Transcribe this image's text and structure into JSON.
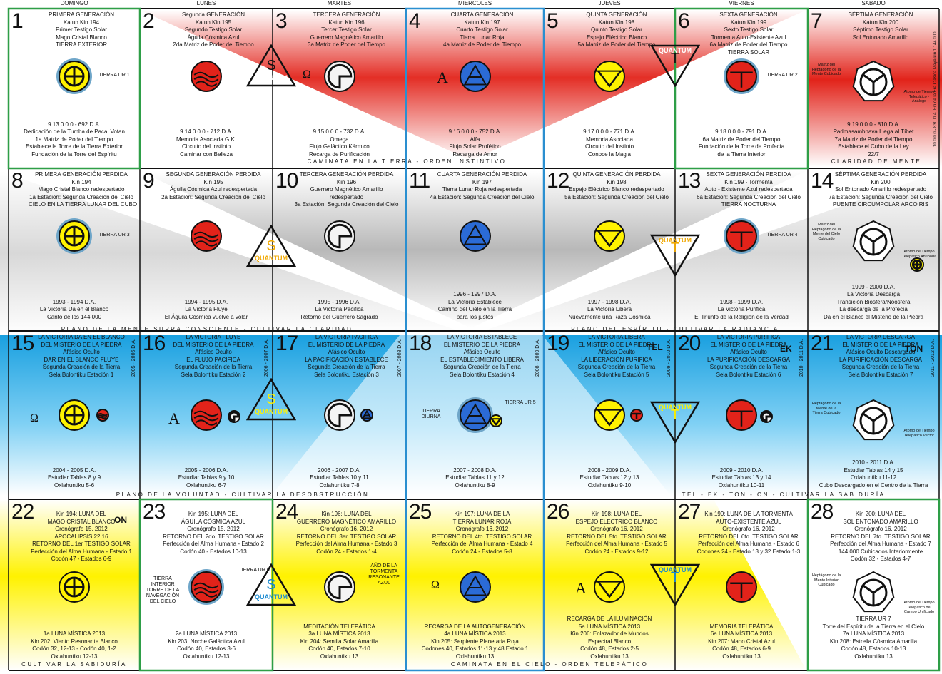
{
  "days": [
    "DOMINGO",
    "LUNES",
    "MARTES",
    "MIERCOLES",
    "JUEVES",
    "VIERNES",
    "SABADO"
  ],
  "strips": [
    "CAMINATA EN LA TIERRA - ORDEN INSTINTIVO",
    "CLARIDAD DE MENTE",
    "PLANO DE LA MENTE SUPRA CONSCIENTE - CULTIVAR LA CLARIDAD",
    "PLANO DEL ESPÍRITU - CULTIVAR LA RADIANCIA",
    "PLANO DE LA VOLUNTAD - CULTIVAR LA DESOBSTRUCCIÓN",
    "TEL - EK - TON - ON - CULTIVAR LA SABIDURÍA",
    "CULTIVAR LA SABIDURÍA",
    "CAMINATA EN EL CIELO - ORDEN TELEPÁTICO"
  ],
  "quantum": {
    "label": "QUANTUM",
    "s": "S",
    "t": "T"
  },
  "marks": {
    "tel": "TEL",
    "ek": "EK",
    "ton": "TON",
    "on": "ON",
    "omega": "Ω",
    "alfa": "A"
  },
  "side_vertical": "10.0.0.0 - 830 D.A. Fin de la Era Clásica Maya kin 1 144.000",
  "cells": [
    {
      "n": "1",
      "top": [
        "PRIMERA GENERACIÓN",
        "Katun Kin 194",
        "Primer Testigo Solar",
        "Mago Cristal Blanco",
        "TIERRA EXTERIOR"
      ],
      "side": "TIERRA UR 1",
      "bottom": [
        "9.13.0.0.0 - 692 D.A.",
        "Dedicación de la Tumba de Pacal Votan",
        "1a Matriz de Poder del Tiempo",
        "Establece la Torre de la Tierra Exterior",
        "Fundación de la Torre del Espíritu"
      ]
    },
    {
      "n": "2",
      "top": [
        "Segunda GENERACIÓN",
        "Katun Kin 195",
        "Segundo Testigo Solar",
        "Águila Cósmica Azul",
        "2da Matriz de Poder del Tiempo"
      ],
      "bottom": [
        "9.14.0.0.0 - 712 D.A.",
        "Memoria  Asociada G.K.",
        "Circuito del Instinto",
        "Caminar con Belleza"
      ]
    },
    {
      "n": "3",
      "top": [
        "TERCERA GENERACIÓN",
        "Katun Kin 196",
        "Tercer Testigo Solar",
        "Guerrero Magnético Amarillo",
        "3a Matriz de Poder del Tiempo"
      ],
      "bottom": [
        "9.15.0.0.0 - 732 D.A.",
        "Omega",
        "Flujo Galáctico Kármico",
        "Recarga de Purificación"
      ]
    },
    {
      "n": "4",
      "top": [
        "CUARTA GENERACIÓN",
        "Katun Kin 197",
        "Cuarto Testigo Solar",
        "Tierra Lunar Roja",
        "4a Matriz de Poder del Tiempo"
      ],
      "bottom": [
        "9.16.0.0.0 - 752 D.A.",
        "Alfa",
        "Flujo Solar Profético",
        "Recarga de Amor"
      ]
    },
    {
      "n": "5",
      "top": [
        "QUINTA GENERACIÓN",
        "Katun Kin 198",
        "Quinto Testigo Solar",
        "Espejo Eléctrico Blanco",
        "5a Matriz de Poder del Tiempo"
      ],
      "bottom": [
        "9.17.0.0.0 - 771 D.A.",
        "Memoria Asociada",
        "Circuito del Instinto",
        "Conoce la Magia"
      ]
    },
    {
      "n": "6",
      "top": [
        "SEXTA GENERACIÓN",
        "Katun Kin 199",
        "Sexto Testigo Solar",
        "Tormenta Auto-Existente Azul",
        "6a Matriz de Poder del Tiempo",
        "TIERRA SOLAR"
      ],
      "side": "TIERRA UR 2",
      "bottom": [
        "9.18.0.0.0 - 791 D.A.",
        "6a Matriz de Poder del Tiempo",
        "Fundación de la Torre de Profecía",
        "de la Tierra Interior"
      ]
    },
    {
      "n": "7",
      "top": [
        "SÉPTIMA GENERACIÓN",
        "Katun Kin 200",
        "Séptimo Testigo Solar",
        "Sol  Entonado Amarillo"
      ],
      "side": "Matriz del Heptágono de la Mente Cubicado",
      "side2": "Atomo de Tiempo Telepático - Análogo",
      "bottom": [
        "9.19.0.0.0 - 810 D.A.",
        "Padmasambhava Llega al Tíbet",
        "7a Matriz de Poder del Tiempo",
        "Establece el Cubo de la Ley",
        "22/7"
      ]
    },
    {
      "n": "8",
      "top": [
        "PRIMERA GENERACIÓN PERDIDA",
        "Kin 194",
        "Mago Cristal Blanco redespertado",
        "1a Estación: Segunda Creación del Cielo",
        "CIELO EN LA TIERRA LUNAR DEL CUBO"
      ],
      "side": "TIERRA UR 3",
      "bottom": [
        "1993 - 1994 D.A.",
        "La Victoria Da en el Blanco",
        "Canto de los 144,000"
      ]
    },
    {
      "n": "9",
      "top": [
        "SEGUNDA GENERACIÓN PERDIDA",
        "Kin 195",
        "Águila Cósmica Azul redespertada",
        "2a Estación: Segunda Creación del Cielo"
      ],
      "bottom": [
        "1994 - 1995 D.A.",
        "La Victoria Fluye",
        "El Águila Cósmica vuelve a volar"
      ]
    },
    {
      "n": "10",
      "top": [
        "TERCERA GENERACIÓN PERDIDA",
        "Kin 196",
        "Guerrero Magnético Amarillo",
        "redespertado",
        "3a Estación: Segunda Creación del Cielo"
      ],
      "bottom": [
        "1995 - 1996 D.A.",
        "La Victoria Pacifica",
        "Retorno del Guerrero Sagrado"
      ]
    },
    {
      "n": "11",
      "top": [
        "CUARTA GENERACIÓN PERDIDA",
        "Kin 197",
        "Tierra Lunar Roja redespertada",
        "4a Estación: Segunda Creación del Cielo"
      ],
      "bottom": [
        "1996 - 1997 D.A.",
        "La Victoria Establece",
        "Camino del Cielo en la Tierra",
        "para los justos"
      ]
    },
    {
      "n": "12",
      "top": [
        "QUINTA GENERACIÓN PERDIDA",
        "Kin 198",
        "Espejo Eléctrico Blanco redespertado",
        "5a Estación: Segunda Creación del Cielo"
      ],
      "bottom": [
        "1997 - 1998 D.A.",
        "La Victoria Libera",
        "Nuevamente una Raza Cósmica"
      ]
    },
    {
      "n": "13",
      "top": [
        "SEXTA GENERACIÓN PERDIDA",
        "Kin 199 - Tormenta",
        "Auto - Existente Azul redespertada",
        "6a Estación: Segunda Creación del Cielo",
        "TIERRA NOCTURNA"
      ],
      "side": "TIERRA UR 4",
      "bottom": [
        "1998 - 1999 D.A.",
        "La Victoria Purifica",
        "El Triunfo de la Religión de la Verdad"
      ]
    },
    {
      "n": "14",
      "top": [
        "SÉPTIMA GENERACIÓN PERDIDA",
        "Kin 200",
        "Sol Entonado Amarillo redespertado",
        "7a Estación: Segunda Creación del Cielo",
        "PUENTE CIRCUMPOLAR ARCOIRIS"
      ],
      "side": "Matriz del Heptágono de la Mente del Cielo Cubicado",
      "side2": "Atomo de Tiempo Telepático Antípoda",
      "bottom": [
        "1999 - 2000 D.A.",
        "La Victoria Descarga",
        "Transición Biósfera/Noosfera",
        "La descarga de la Profecía",
        "Da en el Blanco el Misterio de la Piedra"
      ]
    },
    {
      "n": "15",
      "top": [
        "LA VICTORIA DA EN EL BLANCO",
        "DEL MISTERIO DE LA PIEDRA",
        "Afásico Oculto",
        "DAR EN EL BLANCO FLUYE",
        "Segunda Creación de la Tierra",
        "Sela Bolontiku Estación 1"
      ],
      "vdate": "2005 - 2006 D.A.",
      "bottom": [
        "2004 - 2005 D.A.",
        "Estudiar Tablas 8 y 9",
        "Oxlahuntiku 5-6"
      ]
    },
    {
      "n": "16",
      "top": [
        "LA VICTORIA FLUYE",
        "DEL MISTERIO DE LA PIEDRA",
        "Afásico Oculto",
        "EL FLUJO PACIFICA",
        "Segunda Creación de la Tierra",
        "Sela Bolontiku Estación 2"
      ],
      "vdate": "2006 - 2007 D.A.",
      "bottom": [
        "2005 - 2006 D.A.",
        "Estudiar Tablas 9 y 10",
        "Oxlahuntiku 6-7"
      ]
    },
    {
      "n": "17",
      "top": [
        "LA VICTORIA PACIFICA",
        "EL MISTERIO DE LA PIEDRA",
        "Afásico Oculto",
        "LA PACIFICACIÓN ESTABLECE",
        "Segunda Creación de la Tierra",
        "Sela Bolontiku Estación 3"
      ],
      "vdate": "2007 - 2008 D.A.",
      "bottom": [
        "2006 - 2007 D.A.",
        "Estudiar Tablas 10 y 11",
        "Oxlahuntiku 7-8"
      ]
    },
    {
      "n": "18",
      "top": [
        "LA VICTORIA ESTABLECE",
        "EL MISTERIO DE LA PIEDRA",
        "Afásico Oculto",
        "EL ESTABLECIMIENTO LIBERA",
        "Segunda Creación de la Tierra",
        "Sela Bolontiku Estación 4"
      ],
      "vdate": "2008 - 2009 D.A.",
      "side": "TIERRA DIURNA",
      "side2": "TIERRA UR 5",
      "bottom": [
        "2007 - 2008 D.A.",
        "Estudiar Tablas 11 y 12",
        "Oxlahuntiku 8-9"
      ]
    },
    {
      "n": "19",
      "top": [
        "LA VICTORIA LIBERA",
        "EL MISTERIO DE LA PIEDRA",
        "Afásico Oculto",
        "LA LIBERACIÓN PURIFICA",
        "Segunda Creación de la Tierra",
        "Sela Bolontiku Estación 5"
      ],
      "vdate": "2009 - 2010 D.A.",
      "bottom": [
        "2008 - 2009 D.A.",
        "Estudiar Tablas 12 y 13",
        "Oxlahuntiku 9-10"
      ]
    },
    {
      "n": "20",
      "top": [
        "LA VICTORIA PURIFICA",
        "EL MISTERIO DE LA PIEDRA",
        "Afásico Oculto",
        "LA PURIFICACIÓN DESCARGA",
        "Segunda Creación de la Tierra",
        "Sela Bolontiku Estación 6"
      ],
      "vdate": "2010 - 2011 D.A.",
      "bottom": [
        "2009 - 2010 D.A.",
        "Estudiar Tablas 13 y 14",
        "Oxlahuntiku 10-11"
      ]
    },
    {
      "n": "21",
      "top": [
        "LA VICTORIA DESCARGA",
        "EL MISTERIO DE LA PIEDRA",
        "Afásico Oculto Descargado",
        "LA PURIFICACIÓN DESCARGA",
        "Segunda Creación de la Tierra",
        "Sela Bolontiku Estación 7"
      ],
      "vdate": "2011 - 2012 D.A.",
      "side": "Heptágono de la Mente de la Tierra Cubicado",
      "side2": "Atomo de Tiempo Telepático Vector",
      "bottom": [
        "2010 - 2011 D.A.",
        "Estudiar Tablas 14 y 15",
        "Oxlahuntiku 11-12",
        "Cubo Descargado en el Centro de la Tierra"
      ]
    },
    {
      "n": "22",
      "top": [
        "Kin 194: LUNA DEL",
        "MAGO CRISTAL BLANCO",
        "Cronógrafo 15, 2012",
        "APOCALIPSIS 22:16",
        "RETORNO DEL 1er TESTIGO SOLAR",
        "Perfección del Alma Humana - Estado 1",
        "Codón 47 - Estados 6-9"
      ],
      "bottom": [
        "1a LUNA MÍSTICA 2013",
        "Kin 202: Viento Resonante Blanco",
        "Codón 32, 12-13 - Codón 40, 1-2",
        "Oxlahuntiku 12-13"
      ]
    },
    {
      "n": "23",
      "top": [
        "Kin 195: LUNA DEL",
        "ÁGUILA CÓSMICA AZUL",
        "Cronógrafo 15, 2012",
        "RETORNO DEL 2do. TESTIGO SOLAR",
        "Perfección del Alma Humana - Estado 2",
        "Codón 40 - Estados 10-13"
      ],
      "side": "TIERRA INTERIOR TORRE DE LA NAVEGACIÓN DEL CIELO",
      "side2": "TIERRA UR 6",
      "bottom": [
        "2a LUNA MÍSTICA 2013",
        "Kin 203: Noche Galáctica Azul",
        "Codón 40, Estados 3-6",
        "Oxlahuntiku 12-13"
      ]
    },
    {
      "n": "24",
      "top": [
        "Kin 196: LUNA DEL",
        "GUERRERO MAGNÉTICO AMARILLO",
        "Cronógrafo 16, 2012",
        "RETORNO DEL 3er. TESTIGO SOLAR",
        "Perfección del Alma Humana - Estado 3",
        "Codón 24 - Estados 1-4"
      ],
      "side": "AÑO DE LA TORMENTA RESONANTE AZUL",
      "bottom": [
        "MEDITACIÓN TELEPÁTICA",
        "3a LUNA MÍSTICA 2013",
        "Kin 204: Semilla Solar Amarilla",
        "Codón 40, Estados 7-10",
        "Oxlahuntiku 13"
      ]
    },
    {
      "n": "25",
      "top": [
        "Kin 197: LUNA DE LA",
        "TIERRA LUNAR ROJA",
        "Cronógrafo 16, 2012",
        "RETORNO DEL 4to. TESTIGO SOLAR",
        "Perfección del Alma Humana - Estado 4",
        "Codón 24 - Estados 5-8"
      ],
      "bottom": [
        "RECARGA DE LA AUTOGENERACIÓN",
        "4a LUNA MÍSTICA 2013",
        "Kin 205: Serpiente Planetaria Roja",
        "Codones 40,  Estados 11-13 y 48 Estado 1",
        "Oxlahuntiku 13"
      ]
    },
    {
      "n": "26",
      "top": [
        "Kin 198: LUNA DEL",
        "ESPEJO ELÉCTRICO BLANCO",
        "Cronógrafo 16, 2012",
        "RETORNO DEL 5to. TESTIGO SOLAR",
        "Perfección del Alma Humana - Estado 5",
        "Codón 24 - Estados 9-12"
      ],
      "bottom": [
        "RECARGA DE LA ILUMINACIÓN",
        "5a LUNA MÍSTICA 2013",
        "Kin 206: Enlazador de Mundos",
        "Espectral Blanco",
        "Codón 48, Estados 2-5",
        "Oxlahuntiku 13"
      ]
    },
    {
      "n": "27",
      "top": [
        "Kin 199: LUNA DE LA TORMENTA",
        "AUTO-EXISTENTE AZUL",
        "Cronógrafo 16, 2012",
        "RETORNO DEL 6to. TESTIGO SOLAR",
        "Perfección del Alma Humana - Estado 6",
        "Codones 24 - Estado 13 y 32 Estado 1-3"
      ],
      "bottom": [
        "MEMORIA TELEPÁTICA",
        "6a LUNA MÍSTICA 2013",
        "Kin 207: Mano Cristal Azul",
        "Codón 48, Estados 6-9",
        "Oxlahuntiku 13"
      ]
    },
    {
      "n": "28",
      "top": [
        "Kin 200: LUNA DEL",
        "SOL ENTONADO AMARILLO",
        "Cronógrafo 16, 2012",
        "RETORNO DEL 7to. TESTIGO SOLAR",
        "Perfección del Alma Humana - Estado 7",
        "144 000 Cubicados Interiormente",
        "Codón 32 - Estados 4-7"
      ],
      "side": "Heptágono de la Mente Interior Cubicado",
      "side2": "Atomo de Tiempo Telepático del Campo Unificado",
      "bottom": [
        "TIERRA UR 7",
        "Torre del Espíritu de la Tierra en el Cielo",
        "7a LUNA MÍSTICA 2013",
        "Kin 208: Estrella Cósmica Amarilla",
        "Codón 48, Estados 10-13",
        "Oxlahuntiku 13"
      ]
    }
  ],
  "glyphs": [
    "dragon-earth",
    "wave-red",
    "ring-white",
    "blue-a",
    "yellow-v",
    "red-gate",
    "heptagon",
    "dragon-earth",
    "wave-red",
    "ring-white",
    "blue-a",
    "yellow-v",
    "red-gate",
    "heptagon",
    "dragon-earth",
    "wave-red",
    "ring-white",
    "blue-a",
    "yellow-v",
    "red-gate",
    "heptagon",
    "dragon-earth",
    "wave-red",
    "ring-white",
    "blue-a",
    "yellow-v",
    "red-gate",
    "heptagon"
  ],
  "colors": {
    "red": "#e2231a",
    "blue": "#27a9e1",
    "yellow": "#fff200",
    "green": "#2e9e47",
    "black": "#111111",
    "frameBlue": "#2a8fd0"
  }
}
